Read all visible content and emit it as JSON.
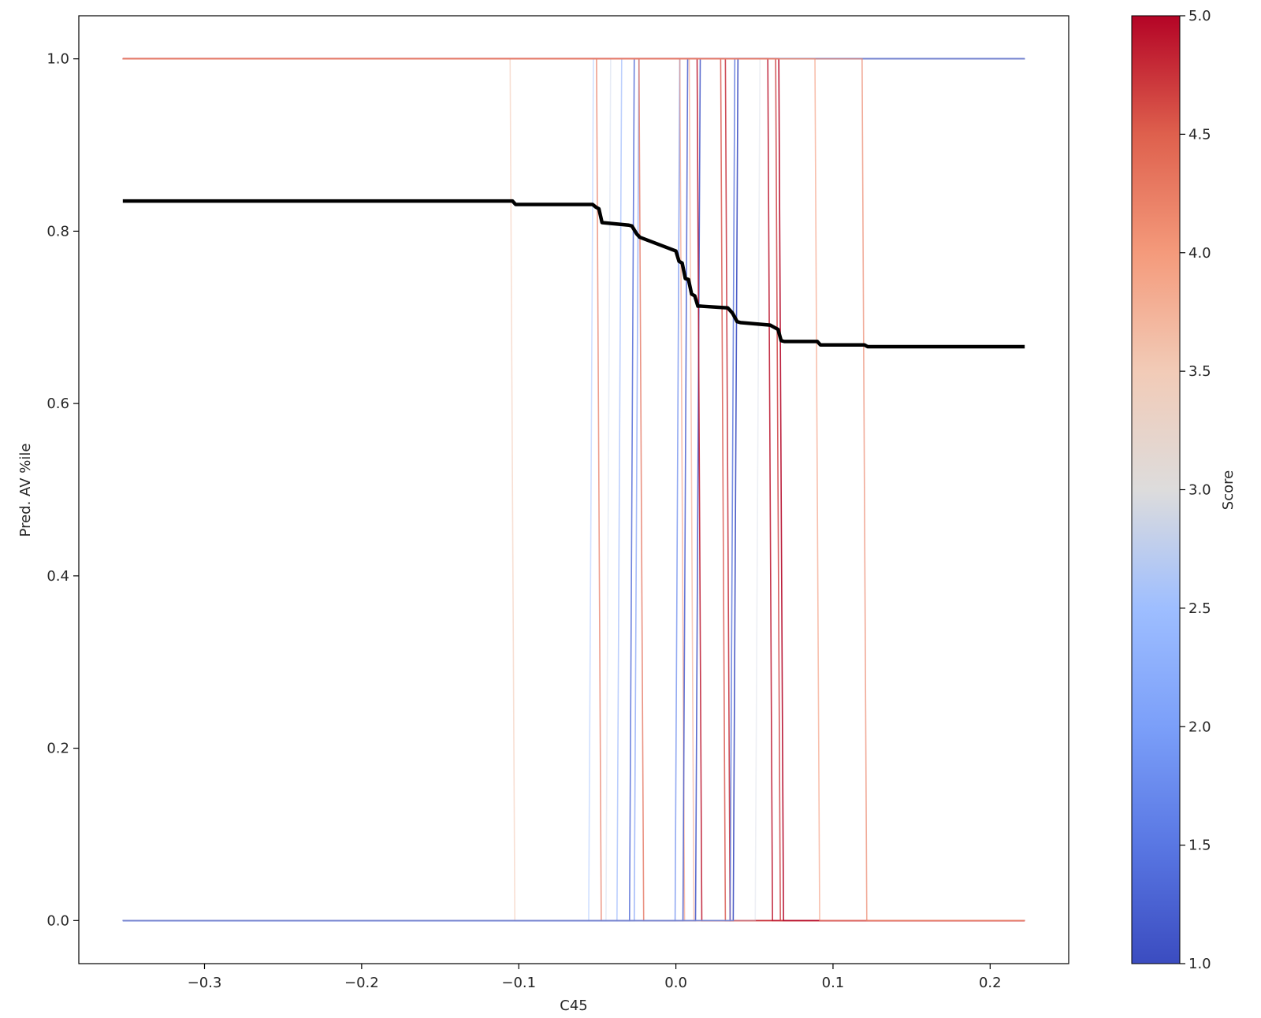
{
  "chart_data": {
    "type": "line",
    "title": "",
    "xlabel": "C45",
    "ylabel": "Pred. AV %ile",
    "xlim": [
      -0.38,
      0.25
    ],
    "ylim": [
      -0.05,
      1.05
    ],
    "x_ticks": [
      -0.3,
      -0.2,
      -0.1,
      0.0,
      0.1,
      0.2
    ],
    "x_tick_labels": [
      "−0.3",
      "−0.2",
      "−0.1",
      "0.0",
      "0.1",
      "0.2"
    ],
    "y_ticks": [
      0.0,
      0.2,
      0.4,
      0.6,
      0.8,
      1.0
    ],
    "y_tick_labels": [
      "0.0",
      "0.2",
      "0.4",
      "0.6",
      "0.8",
      "1.0"
    ],
    "grid": false,
    "x_range": [
      -0.352,
      0.222
    ],
    "colorbar": {
      "label": "Score",
      "colormap": "coolwarm",
      "range": [
        1.0,
        5.0
      ],
      "ticks": [
        1.0,
        1.5,
        2.0,
        2.5,
        3.0,
        3.5,
        4.0,
        4.5,
        5.0
      ],
      "tick_labels": [
        "1.0",
        "1.5",
        "2.0",
        "2.5",
        "3.0",
        "3.5",
        "4.0",
        "4.5",
        "5.0"
      ]
    },
    "series": [
      {
        "kind": "average",
        "color": "#000000",
        "x": [
          -0.352,
          -0.104,
          -0.102,
          -0.053,
          -0.051,
          -0.049,
          -0.047,
          -0.03,
          -0.028,
          -0.025,
          -0.023,
          0.0,
          0.002,
          0.004,
          0.006,
          0.008,
          0.01,
          0.012,
          0.014,
          0.016,
          0.033,
          0.036,
          0.039,
          0.041,
          0.06,
          0.062,
          0.065,
          0.067,
          0.069,
          0.09,
          0.092,
          0.12,
          0.122,
          0.222
        ],
        "y": [
          0.835,
          0.835,
          0.831,
          0.831,
          0.828,
          0.826,
          0.81,
          0.807,
          0.806,
          0.797,
          0.793,
          0.777,
          0.765,
          0.763,
          0.745,
          0.744,
          0.727,
          0.725,
          0.713,
          0.713,
          0.711,
          0.705,
          0.695,
          0.694,
          0.691,
          0.689,
          0.686,
          0.673,
          0.672,
          0.672,
          0.668,
          0.668,
          0.666,
          0.666
        ]
      }
    ],
    "individual_curves": [
      {
        "threshold": -0.104,
        "score": 3.6,
        "direction": "down"
      },
      {
        "threshold": -0.054,
        "score": 2.5,
        "direction": "up"
      },
      {
        "threshold": -0.049,
        "score": 4.3,
        "direction": "down"
      },
      {
        "threshold": -0.043,
        "score": 2.8,
        "direction": "up"
      },
      {
        "threshold": -0.036,
        "score": 2.2,
        "direction": "up"
      },
      {
        "threshold": -0.028,
        "score": 1.3,
        "direction": "up"
      },
      {
        "threshold": -0.025,
        "score": 1.9,
        "direction": "up"
      },
      {
        "threshold": -0.022,
        "score": 4.4,
        "direction": "down"
      },
      {
        "threshold": 0.001,
        "score": 1.7,
        "direction": "up"
      },
      {
        "threshold": 0.004,
        "score": 4.0,
        "direction": "down"
      },
      {
        "threshold": 0.006,
        "score": 1.2,
        "direction": "up"
      },
      {
        "threshold": 0.01,
        "score": 3.9,
        "direction": "down"
      },
      {
        "threshold": 0.014,
        "score": 1.1,
        "direction": "up"
      },
      {
        "threshold": 0.015,
        "score": 4.9,
        "direction": "down"
      },
      {
        "threshold": 0.03,
        "score": 4.6,
        "direction": "down"
      },
      {
        "threshold": 0.033,
        "score": 4.8,
        "direction": "down"
      },
      {
        "threshold": 0.036,
        "score": 1.4,
        "direction": "up"
      },
      {
        "threshold": 0.038,
        "score": 1.0,
        "direction": "up"
      },
      {
        "threshold": 0.052,
        "score": 2.9,
        "direction": "up"
      },
      {
        "threshold": 0.06,
        "score": 4.9,
        "direction": "down"
      },
      {
        "threshold": 0.065,
        "score": 4.7,
        "direction": "down"
      },
      {
        "threshold": 0.067,
        "score": 5.0,
        "direction": "down"
      },
      {
        "threshold": 0.09,
        "score": 4.0,
        "direction": "down"
      },
      {
        "threshold": 0.12,
        "score": 4.2,
        "direction": "down"
      }
    ]
  }
}
